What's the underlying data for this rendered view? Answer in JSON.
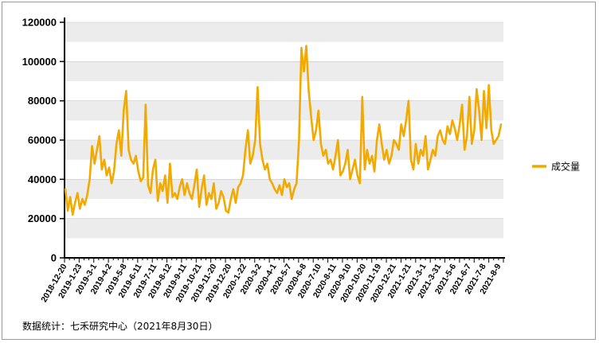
{
  "source_note": "数据统计：七禾研究中心（2021年8月30日）",
  "chart_data": {
    "type": "line",
    "title": "",
    "xlabel": "",
    "ylabel": "",
    "ylim": [
      0,
      120000
    ],
    "yticks": [
      0,
      20000,
      40000,
      60000,
      80000,
      100000,
      120000
    ],
    "grid": "horizontal alternating bands",
    "legend_position": "right",
    "x_tick_labels": [
      "2018-12-20",
      "2019-1-23",
      "2019-3-1",
      "2019-4-2",
      "2019-5-8",
      "2019-6-11",
      "2019-7-11",
      "2019-8-12",
      "2019-9-11",
      "2019-10-21",
      "2019-11-20",
      "2019-12-20",
      "2020-1-22",
      "2020-3-2",
      "2020-4-1",
      "2020-5-7",
      "2020-6-8",
      "2020-7-10",
      "2020-8-11",
      "2020-9-10",
      "2020-10-20",
      "2020-11-19",
      "2020-12-21",
      "2021-1-21",
      "2021-3-1",
      "2021-3-31",
      "2021-5-6",
      "2021-6-7",
      "2021-7-8",
      "2021-8-9"
    ],
    "series": [
      {
        "name": "成交量",
        "color": "#F2A900",
        "values": [
          35000,
          24000,
          31000,
          22000,
          28000,
          33000,
          25000,
          30000,
          27000,
          32000,
          40000,
          57000,
          48000,
          55000,
          62000,
          45000,
          50000,
          42000,
          46000,
          38000,
          44000,
          58000,
          65000,
          52000,
          75000,
          85000,
          55000,
          50000,
          48000,
          52000,
          44000,
          39000,
          41000,
          78000,
          37000,
          33000,
          45000,
          50000,
          29000,
          38000,
          34000,
          42000,
          28000,
          48000,
          31000,
          33000,
          30000,
          36000,
          40000,
          32000,
          38000,
          33000,
          30000,
          37000,
          45000,
          26000,
          35000,
          42000,
          27000,
          33000,
          30000,
          38000,
          25000,
          28000,
          34000,
          31000,
          24000,
          23000,
          30000,
          35000,
          28000,
          36000,
          38000,
          42000,
          55000,
          65000,
          48000,
          52000,
          60000,
          87000,
          58000,
          50000,
          45000,
          48000,
          40000,
          38000,
          35000,
          33000,
          37000,
          32000,
          40000,
          36000,
          38000,
          30000,
          35000,
          38000,
          60000,
          107000,
          95000,
          108000,
          85000,
          72000,
          60000,
          65000,
          75000,
          58000,
          52000,
          55000,
          48000,
          50000,
          45000,
          52000,
          60000,
          42000,
          44000,
          48000,
          55000,
          40000,
          45000,
          50000,
          42000,
          38000,
          82000,
          45000,
          55000,
          48000,
          52000,
          44000,
          60000,
          68000,
          58000,
          50000,
          55000,
          48000,
          52000,
          60000,
          58000,
          55000,
          68000,
          62000,
          70000,
          80000,
          50000,
          45000,
          58000,
          48000,
          55000,
          52000,
          62000,
          45000,
          50000,
          55000,
          52000,
          62000,
          65000,
          60000,
          58000,
          67000,
          63000,
          70000,
          66000,
          60000,
          68000,
          78000,
          55000,
          62000,
          82000,
          58000,
          65000,
          86000,
          75000,
          60000,
          85000,
          66000,
          88000,
          65000,
          58000,
          60000,
          62000,
          68000
        ]
      }
    ]
  }
}
